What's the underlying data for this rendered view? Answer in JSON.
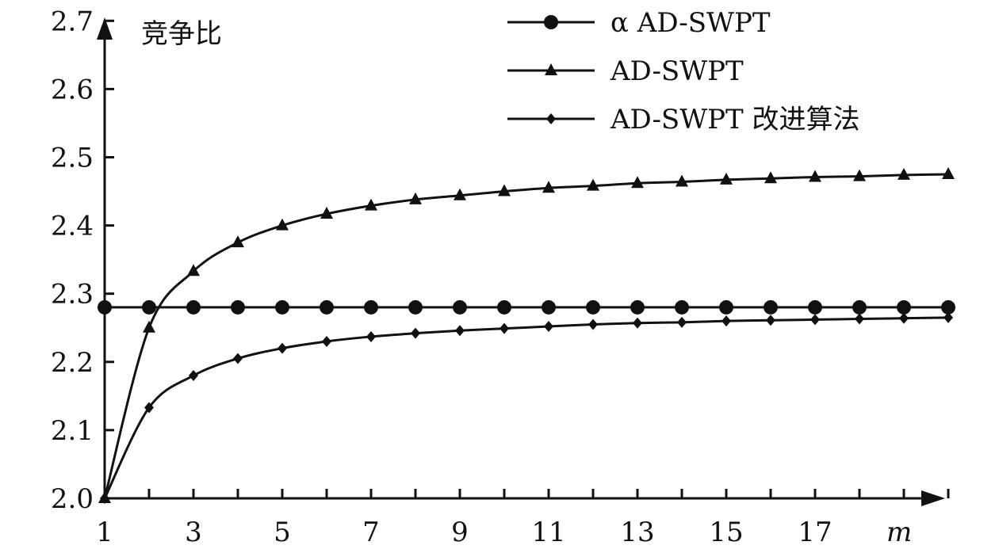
{
  "chart_data": {
    "type": "line",
    "title": "",
    "xlabel": "m",
    "ylabel": "竞争比",
    "xlim": [
      1,
      20
    ],
    "ylim": [
      2.0,
      2.7
    ],
    "x_ticks": [
      1,
      3,
      5,
      7,
      9,
      11,
      13,
      15,
      17
    ],
    "y_ticks": [
      "2.0",
      "2.1",
      "2.2",
      "2.3",
      "2.4",
      "2.5",
      "2.6",
      "2.7"
    ],
    "grid": false,
    "legend_position": "top-right",
    "x": [
      1,
      2,
      3,
      4,
      5,
      6,
      7,
      8,
      9,
      10,
      11,
      12,
      13,
      14,
      15,
      16,
      17,
      18,
      19,
      20
    ],
    "series": [
      {
        "name": "α AD-SWPT",
        "marker": "circle",
        "values": [
          2.28,
          2.28,
          2.28,
          2.28,
          2.28,
          2.28,
          2.28,
          2.28,
          2.28,
          2.28,
          2.28,
          2.28,
          2.28,
          2.28,
          2.28,
          2.28,
          2.28,
          2.28,
          2.28,
          2.28
        ]
      },
      {
        "name": "AD-SWPT",
        "marker": "triangle",
        "values": [
          2.0,
          2.25,
          2.333,
          2.375,
          2.4,
          2.417,
          2.429,
          2.438,
          2.444,
          2.45,
          2.455,
          2.458,
          2.462,
          2.464,
          2.467,
          2.469,
          2.471,
          2.472,
          2.474,
          2.475
        ]
      },
      {
        "name": "AD-SWPT 改进算法",
        "marker": "diamond",
        "values": [
          2.0,
          2.133,
          2.18,
          2.205,
          2.22,
          2.23,
          2.237,
          2.242,
          2.246,
          2.249,
          2.252,
          2.255,
          2.257,
          2.258,
          2.26,
          2.261,
          2.262,
          2.263,
          2.264,
          2.265
        ]
      }
    ]
  }
}
